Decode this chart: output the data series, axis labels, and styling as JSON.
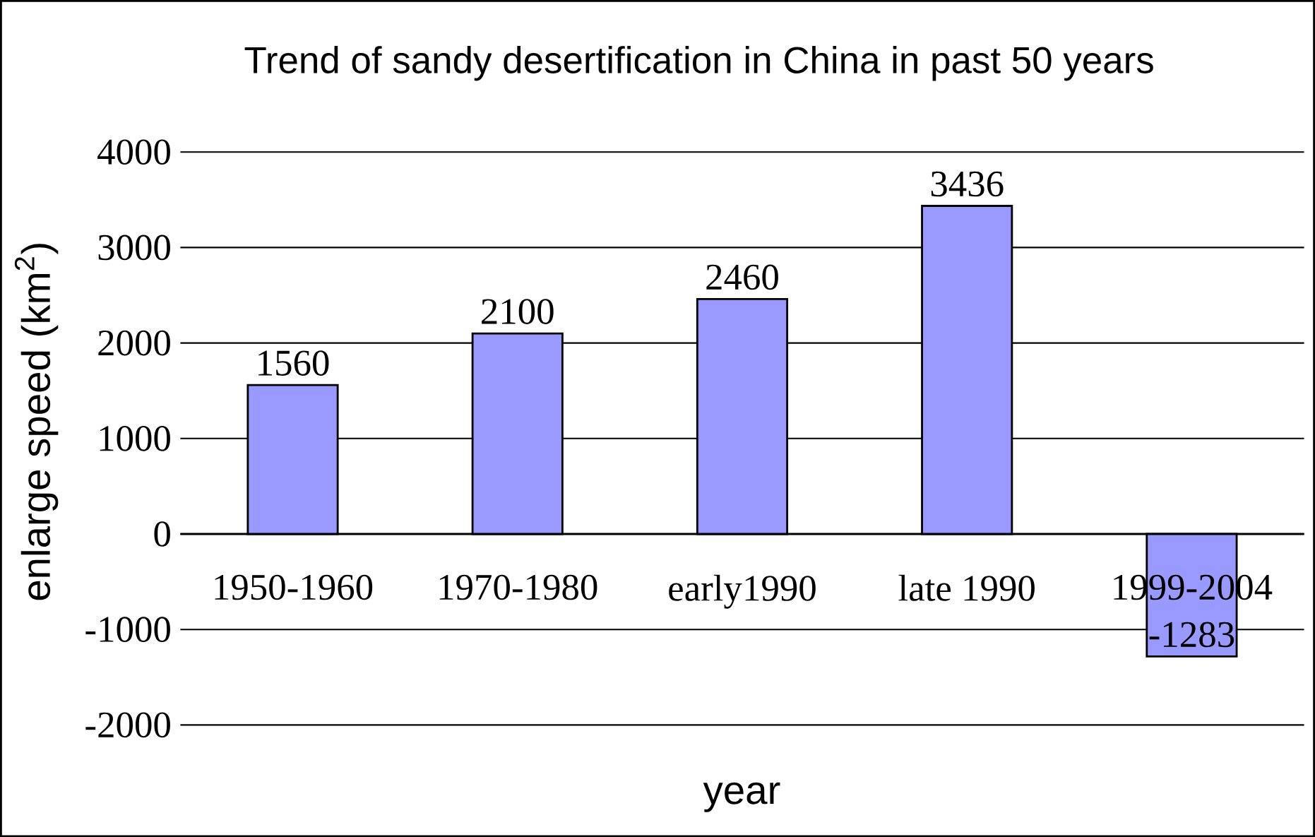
{
  "chart_data": {
    "type": "bar",
    "title": "Trend of sandy desertification in China in past 50 years",
    "xlabel": "year",
    "ylabel": "enlarge speed (km$^{2}$)",
    "categories": [
      "1950-1960",
      "1970-1980",
      "early1990",
      "late 1990",
      "1999-2004"
    ],
    "values": [
      1560,
      2100,
      2460,
      3436,
      -1283
    ],
    "color": "#9999ff",
    "ylim": [
      -2000,
      4000
    ],
    "yticks": [
      -2000,
      -1000,
      0,
      1000,
      2000,
      3000,
      4000
    ],
    "grid": "y",
    "data_labels": true
  }
}
